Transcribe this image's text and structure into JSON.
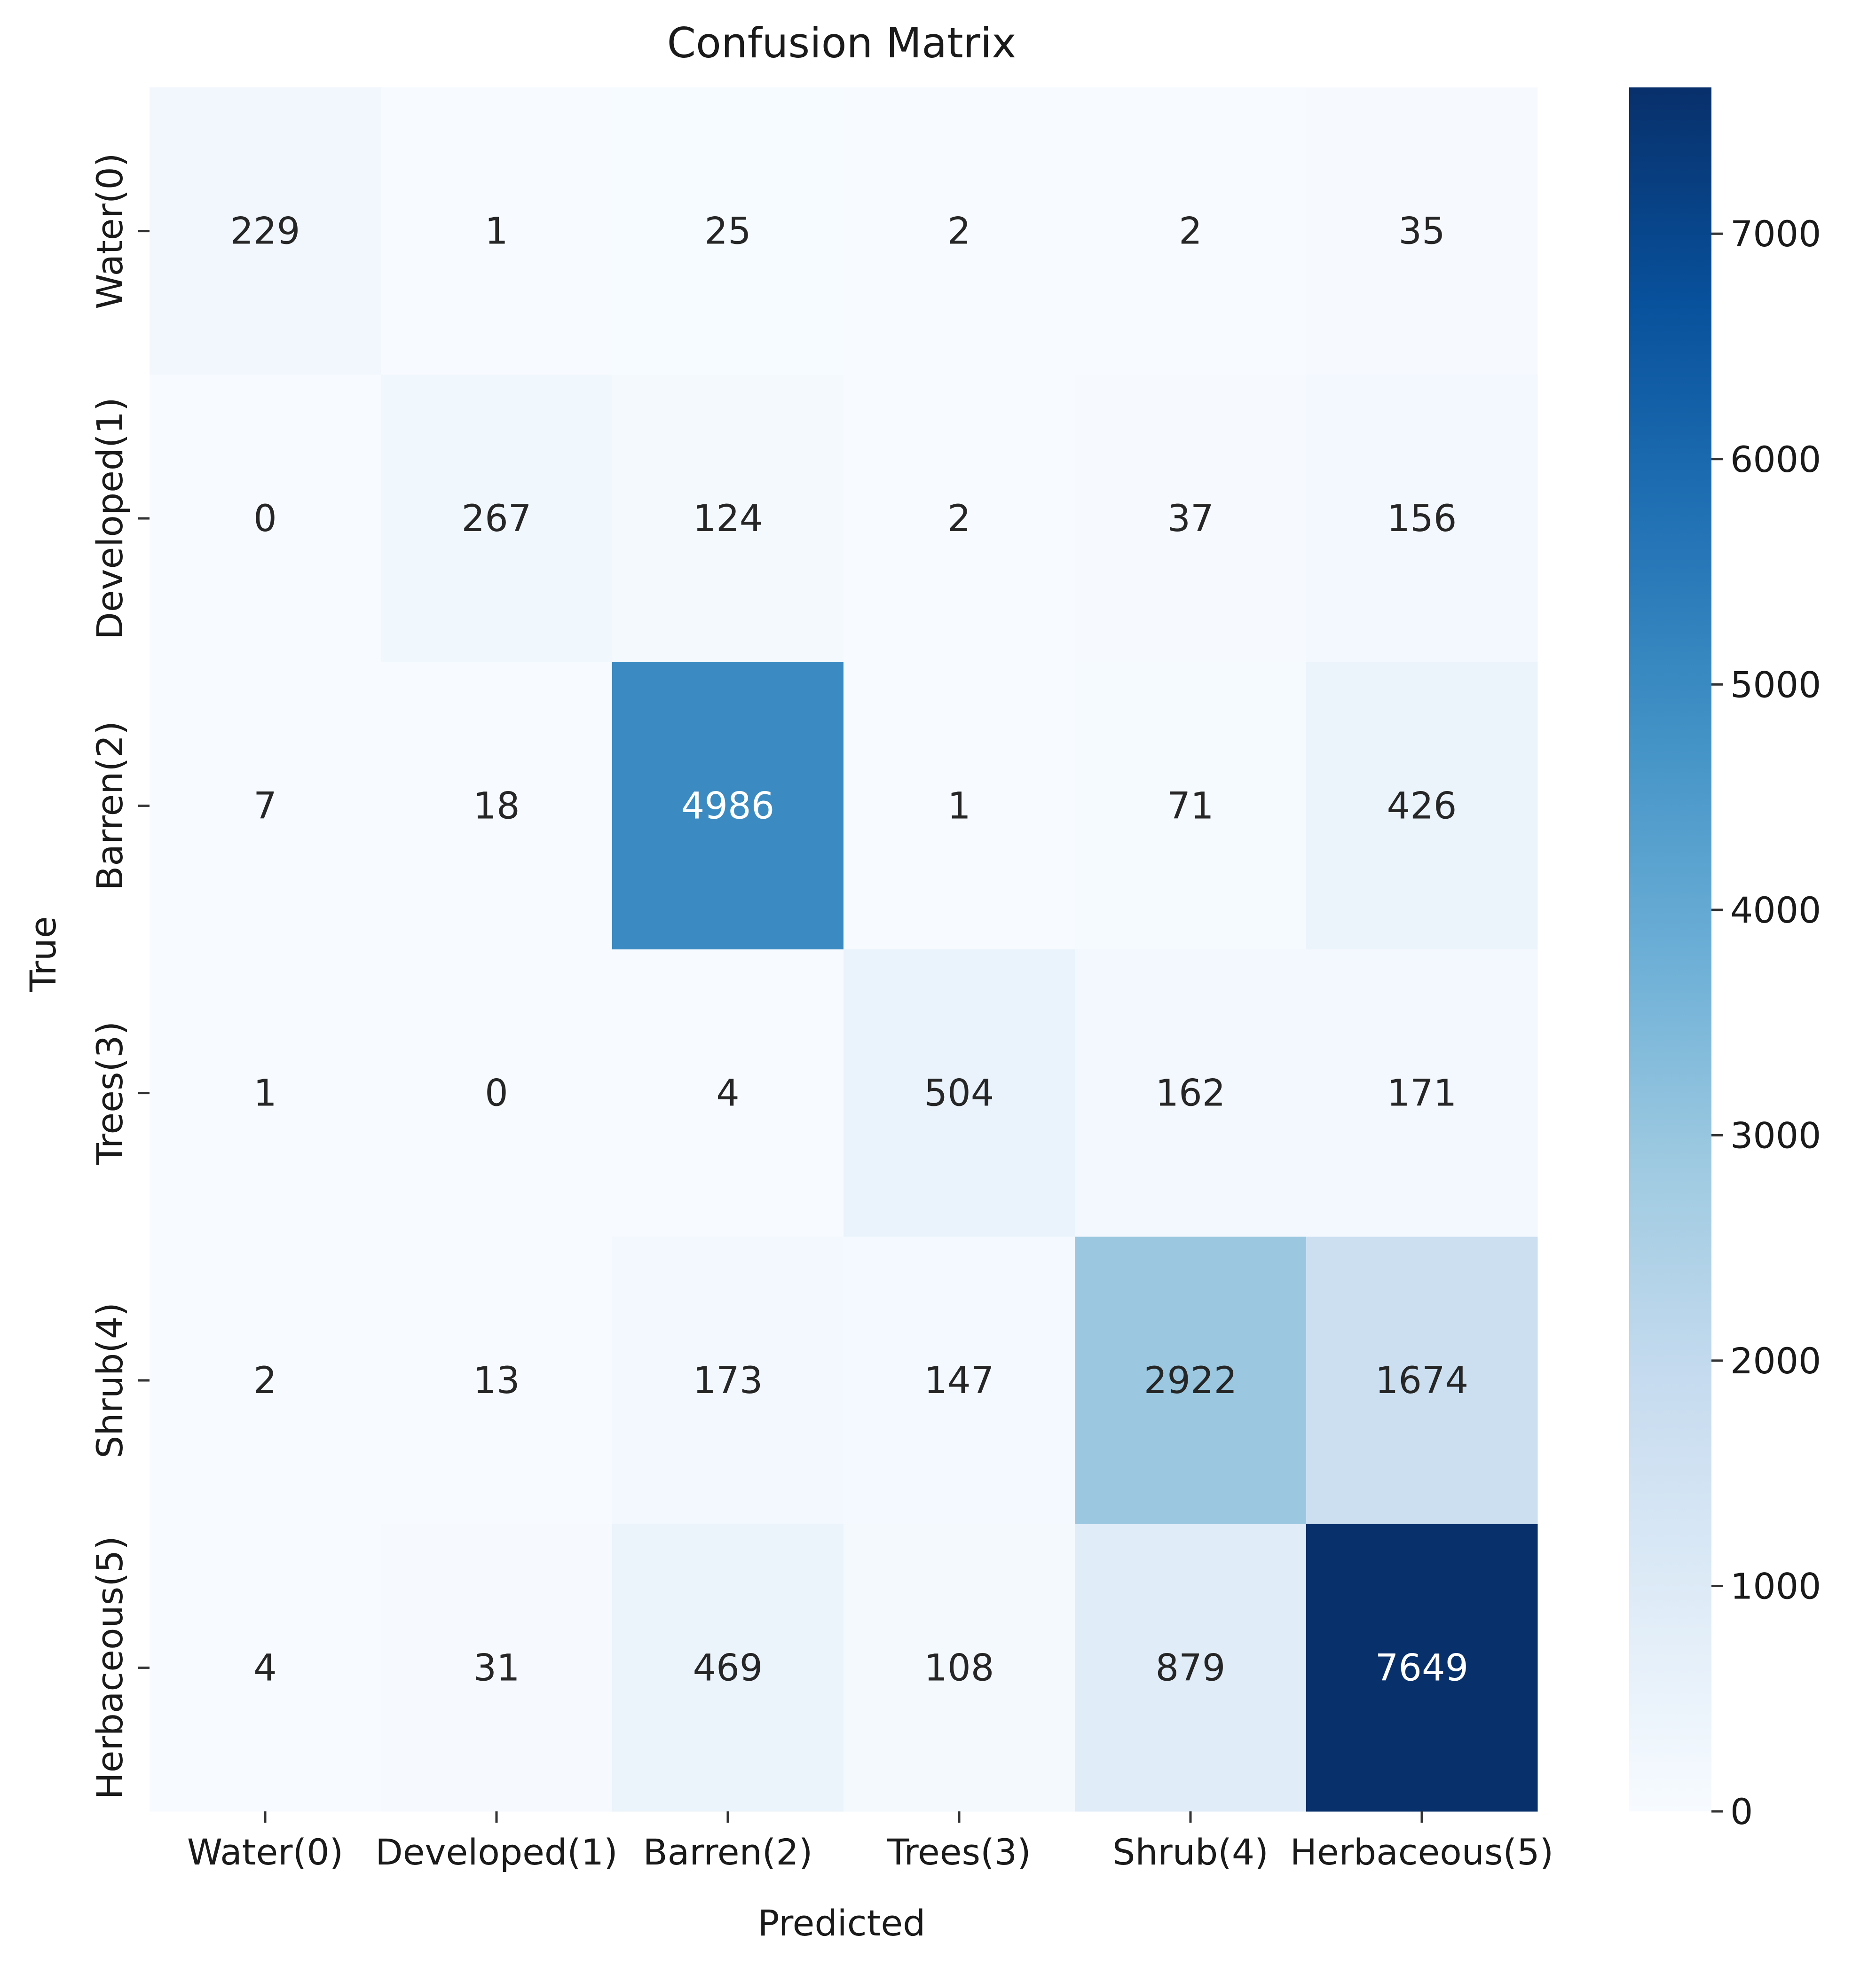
{
  "chart_data": {
    "type": "heatmap",
    "title": "Confusion Matrix",
    "xlabel": "Predicted",
    "ylabel": "True",
    "x_categories": [
      "Water(0)",
      "Developed(1)",
      "Barren(2)",
      "Trees(3)",
      "Shrub(4)",
      "Herbaceous(5)"
    ],
    "y_categories": [
      "Water(0)",
      "Developed(1)",
      "Barren(2)",
      "Trees(3)",
      "Shrub(4)",
      "Herbaceous(5)"
    ],
    "values": [
      [
        229,
        1,
        25,
        2,
        2,
        35
      ],
      [
        0,
        267,
        124,
        2,
        37,
        156
      ],
      [
        7,
        18,
        4986,
        1,
        71,
        426
      ],
      [
        1,
        0,
        4,
        504,
        162,
        171
      ],
      [
        2,
        13,
        173,
        147,
        2922,
        1674
      ],
      [
        4,
        31,
        469,
        108,
        879,
        7649
      ]
    ],
    "colormap": "Blues",
    "colormap_stops": [
      "#f7fbff",
      "#deebf7",
      "#c6dbef",
      "#9ecae1",
      "#6baed6",
      "#4292c6",
      "#2171b5",
      "#08519c",
      "#08306b"
    ],
    "vmin": 0,
    "vmax": 7649,
    "colorbar_ticks": [
      0,
      1000,
      2000,
      3000,
      4000,
      5000,
      6000,
      7000
    ],
    "grid": false
  }
}
